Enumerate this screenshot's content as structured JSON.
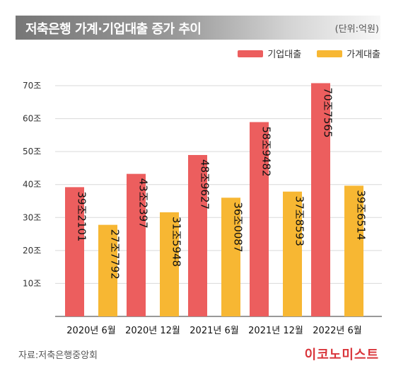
{
  "header": {
    "title": "저축은행 가계·기업대출 증가 추이",
    "unit": "(단위:억원)"
  },
  "footer": {
    "source": "자료:저축은행중앙회",
    "brand": "이코노미스트"
  },
  "colors": {
    "corporate": "#ec5e5e",
    "household": "#f7b733"
  },
  "chart_data": {
    "type": "bar",
    "title": "저축은행 가계·기업대출 증가 추이",
    "unit": "(단위:억원)",
    "categories": [
      "2020년 6월",
      "2020년 12월",
      "2021년 6월",
      "2021년 12월",
      "2022년 6월"
    ],
    "series": [
      {
        "name": "기업대출",
        "values": [
          392101,
          432397,
          489627,
          589482,
          707565
        ],
        "labels": [
          "39조2101",
          "43조2397",
          "48조9627",
          "58조9482",
          "70조7565"
        ]
      },
      {
        "name": "가계대출",
        "values": [
          277792,
          315948,
          360087,
          378593,
          396514
        ],
        "labels": [
          "27조7792",
          "31조5948",
          "36조0087",
          "37조8593",
          "39조6514"
        ]
      }
    ],
    "ylim": [
      0,
      700000
    ],
    "yticks": [
      {
        "value": 100000,
        "label": "10조"
      },
      {
        "value": 200000,
        "label": "20조"
      },
      {
        "value": 300000,
        "label": "30조"
      },
      {
        "value": 400000,
        "label": "40조"
      },
      {
        "value": 500000,
        "label": "50조"
      },
      {
        "value": 600000,
        "label": "60조"
      },
      {
        "value": 700000,
        "label": "70조"
      }
    ],
    "grid": true,
    "legend": "top-right"
  }
}
